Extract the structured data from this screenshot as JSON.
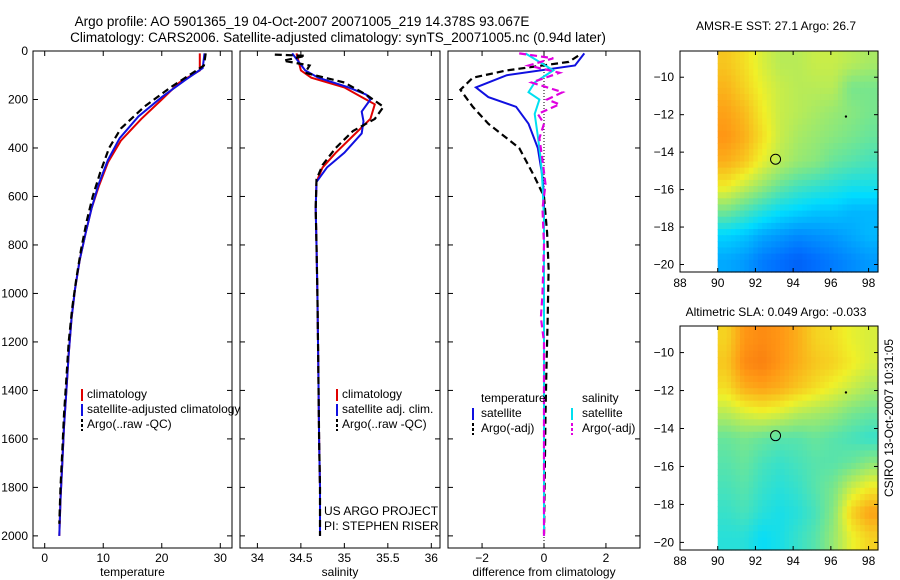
{
  "header": {
    "title_line1": "Argo profile: AO 5901365_19 04-Oct-2007 20071005_219 14.378S 93.067E",
    "title_line2": "Climatology: CARS2006. Satellite-adjusted climatology: synTS_20071005.nc (0.94d later)"
  },
  "side_label": "CSIRO 13-Oct-2007 10:31:05",
  "colors": {
    "climatology": "#e00000",
    "satellite": "#1010e0",
    "argo": "#000000",
    "sat_salinity": "#00e0f0",
    "argo_salinity": "#e000e0"
  },
  "chart_data": [
    {
      "type": "line",
      "id": "temperature",
      "xlabel": "temperature",
      "ylabel": "",
      "xlim": [
        -2,
        32
      ],
      "ylim": [
        0,
        2050
      ],
      "y_reversed": true,
      "xticks": [
        0,
        10,
        20,
        30
      ],
      "yticks": [
        0,
        200,
        400,
        600,
        800,
        1000,
        1200,
        1400,
        1600,
        1800,
        2000
      ],
      "legend": [
        "climatology",
        "satellite-adjusted climatology",
        "Argo(..raw -QC)"
      ],
      "legend_position": "lower-center",
      "series": [
        {
          "name": "climatology",
          "color": "#e00000",
          "style": "solid",
          "points": [
            [
              26.5,
              10
            ],
            [
              26.5,
              80
            ],
            [
              23,
              130
            ],
            [
              20,
              200
            ],
            [
              16.5,
              280
            ],
            [
              13,
              370
            ],
            [
              10.8,
              460
            ],
            [
              9.2,
              560
            ],
            [
              8,
              650
            ],
            [
              7,
              750
            ],
            [
              6,
              860
            ],
            [
              5.2,
              980
            ],
            [
              4.6,
              1100
            ],
            [
              4.1,
              1250
            ],
            [
              3.7,
              1400
            ],
            [
              3.3,
              1550
            ],
            [
              3,
              1700
            ],
            [
              2.7,
              1850
            ],
            [
              2.5,
              2000
            ]
          ]
        },
        {
          "name": "satellite-adjusted climatology",
          "color": "#1010e0",
          "style": "solid",
          "points": [
            [
              27.3,
              10
            ],
            [
              27,
              70
            ],
            [
              24,
              120
            ],
            [
              20,
              190
            ],
            [
              16,
              270
            ],
            [
              12.8,
              360
            ],
            [
              10.8,
              450
            ],
            [
              9.2,
              550
            ],
            [
              8,
              650
            ],
            [
              7,
              750
            ],
            [
              6,
              860
            ],
            [
              5.2,
              980
            ],
            [
              4.6,
              1100
            ],
            [
              4.1,
              1250
            ],
            [
              3.7,
              1400
            ],
            [
              3.3,
              1550
            ],
            [
              3,
              1700
            ],
            [
              2.7,
              1850
            ],
            [
              2.5,
              2000
            ]
          ]
        },
        {
          "name": "Argo(..raw -QC)",
          "color": "#000000",
          "style": "dashed",
          "points": [
            [
              27.5,
              10
            ],
            [
              27.2,
              60
            ],
            [
              25,
              95
            ],
            [
              21.5,
              150
            ],
            [
              17,
              230
            ],
            [
              13,
              320
            ],
            [
              11,
              400
            ],
            [
              9.5,
              500
            ],
            [
              8.2,
              600
            ],
            [
              7.2,
              700
            ],
            [
              6.2,
              820
            ],
            [
              5.4,
              940
            ],
            [
              4.7,
              1060
            ],
            [
              4.1,
              1200
            ],
            [
              3.7,
              1350
            ],
            [
              3.3,
              1500
            ],
            [
              3,
              1650
            ],
            [
              2.7,
              1800
            ],
            [
              2.5,
              1950
            ]
          ]
        }
      ]
    },
    {
      "type": "line",
      "id": "salinity",
      "xlabel": "salinity",
      "ylabel": "",
      "xlim": [
        33.8,
        36.1
      ],
      "ylim": [
        0,
        2050
      ],
      "y_reversed": true,
      "xticks": [
        34,
        34.5,
        35,
        35.5,
        36
      ],
      "yticks": [
        0,
        200,
        400,
        600,
        800,
        1000,
        1200,
        1400,
        1600,
        1800,
        2000
      ],
      "legend": [
        "climatology",
        "satellite adj. clim.",
        "Argo(..raw -QC)"
      ],
      "legend_position": "lower-right",
      "annotation": [
        "US ARGO PROJECT",
        "PI: STEPHEN RISER"
      ],
      "series": [
        {
          "name": "climatology",
          "color": "#e00000",
          "style": "solid",
          "points": [
            [
              34.45,
              10
            ],
            [
              34.5,
              80
            ],
            [
              34.62,
              110
            ],
            [
              35,
              150
            ],
            [
              35.2,
              190
            ],
            [
              35.35,
              220
            ],
            [
              35.3,
              280
            ],
            [
              35.1,
              350
            ],
            [
              34.9,
              420
            ],
            [
              34.75,
              480
            ],
            [
              34.68,
              540
            ],
            [
              34.67,
              650
            ],
            [
              34.68,
              800
            ],
            [
              34.69,
              1000
            ],
            [
              34.7,
              1300
            ],
            [
              34.71,
              1600
            ],
            [
              34.72,
              1800
            ],
            [
              34.72,
              2000
            ]
          ]
        },
        {
          "name": "satellite adj. clim.",
          "color": "#1010e0",
          "style": "solid",
          "points": [
            [
              34.4,
              10
            ],
            [
              34.55,
              80
            ],
            [
              34.7,
              110
            ],
            [
              35.05,
              150
            ],
            [
              35.25,
              180
            ],
            [
              35.3,
              200
            ],
            [
              35.2,
              250
            ],
            [
              35.22,
              290
            ],
            [
              35.2,
              340
            ],
            [
              35,
              420
            ],
            [
              34.8,
              480
            ],
            [
              34.68,
              540
            ],
            [
              34.67,
              650
            ],
            [
              34.68,
              800
            ],
            [
              34.69,
              1000
            ],
            [
              34.7,
              1300
            ],
            [
              34.71,
              1600
            ],
            [
              34.72,
              1800
            ],
            [
              34.72,
              2000
            ]
          ]
        },
        {
          "name": "Argo(..raw -QC)",
          "color": "#000000",
          "style": "dashed",
          "points": [
            [
              34.2,
              15
            ],
            [
              34.55,
              20
            ],
            [
              34.3,
              40
            ],
            [
              34.6,
              60
            ],
            [
              34.55,
              90
            ],
            [
              35,
              130
            ],
            [
              35.25,
              180
            ],
            [
              35.45,
              230
            ],
            [
              35.35,
              280
            ],
            [
              35.1,
              330
            ],
            [
              34.9,
              400
            ],
            [
              34.75,
              470
            ],
            [
              34.68,
              530
            ],
            [
              34.67,
              650
            ],
            [
              34.68,
              800
            ],
            [
              34.69,
              1000
            ],
            [
              34.7,
              1300
            ],
            [
              34.71,
              1600
            ],
            [
              34.72,
              1800
            ],
            [
              34.72,
              2000
            ]
          ]
        }
      ]
    },
    {
      "type": "line",
      "id": "difference",
      "xlabel": "difference from climatology",
      "ylabel": "",
      "xlim": [
        -3.1,
        3.1
      ],
      "ylim": [
        0,
        2050
      ],
      "y_reversed": true,
      "xticks": [
        -2,
        0,
        2
      ],
      "yticks": [
        0,
        200,
        400,
        600,
        800,
        1000,
        1200,
        1400,
        1600,
        1800,
        2000
      ],
      "legend_columns": [
        {
          "heading": "temperature",
          "items": [
            "satellite",
            "Argo(-adj)"
          ]
        },
        {
          "heading": "salinity",
          "items": [
            "satellite",
            "Argo(-adj)"
          ]
        }
      ],
      "legend_position": "lower",
      "series": [
        {
          "name": "temperature satellite",
          "color": "#1010e0",
          "style": "solid",
          "points": [
            [
              1.3,
              10
            ],
            [
              1,
              60
            ],
            [
              -1.2,
              100
            ],
            [
              -2.2,
              150
            ],
            [
              -1.8,
              190
            ],
            [
              -0.9,
              230
            ],
            [
              -0.5,
              300
            ],
            [
              -0.2,
              400
            ],
            [
              -0.05,
              520
            ],
            [
              0,
              600
            ],
            [
              0,
              2000
            ]
          ]
        },
        {
          "name": "temperature Argo(-adj)",
          "color": "#000000",
          "style": "dashed",
          "points": [
            [
              1.1,
              20
            ],
            [
              0.8,
              45
            ],
            [
              -1.2,
              80
            ],
            [
              -2.3,
              110
            ],
            [
              -2.7,
              160
            ],
            [
              -2.3,
              230
            ],
            [
              -1.8,
              300
            ],
            [
              -0.8,
              400
            ],
            [
              -0.3,
              520
            ],
            [
              0,
              600
            ],
            [
              0.1,
              750
            ],
            [
              0.15,
              900
            ],
            [
              0.12,
              1100
            ],
            [
              0.08,
              1300
            ],
            [
              0.05,
              1500
            ],
            [
              0.02,
              1800
            ],
            [
              0,
              2000
            ]
          ]
        },
        {
          "name": "salinity satellite",
          "color": "#00e0f0",
          "style": "solid",
          "points": [
            [
              -0.6,
              10
            ],
            [
              0.3,
              80
            ],
            [
              -0.3,
              130
            ],
            [
              -0.5,
              170
            ],
            [
              -0.15,
              200
            ],
            [
              -0.3,
              260
            ],
            [
              -0.2,
              350
            ],
            [
              -0.1,
              450
            ],
            [
              -0.05,
              550
            ],
            [
              0,
              700
            ],
            [
              0,
              2000
            ]
          ]
        },
        {
          "name": "salinity Argo(-adj)",
          "color": "#e000e0",
          "style": "dashed",
          "points": [
            [
              -0.8,
              10
            ],
            [
              0.3,
              30
            ],
            [
              -0.5,
              60
            ],
            [
              0.5,
              90
            ],
            [
              -0.4,
              130
            ],
            [
              0.6,
              170
            ],
            [
              0.1,
              200
            ],
            [
              0.5,
              220
            ],
            [
              -0.2,
              260
            ],
            [
              0,
              300
            ],
            [
              -0.15,
              360
            ],
            [
              -0.05,
              450
            ],
            [
              0.05,
              550
            ],
            [
              -0.05,
              650
            ],
            [
              0,
              800
            ],
            [
              -0.05,
              1000
            ],
            [
              -0.1,
              1100
            ],
            [
              0,
              1200
            ],
            [
              0,
              2000
            ]
          ]
        }
      ]
    },
    {
      "type": "heatmap",
      "id": "sst_map",
      "title": "AMSR-E SST: 27.1  Argo: 26.7",
      "xlim": [
        88,
        98.5
      ],
      "ylim": [
        -20.4,
        -8.6
      ],
      "xticks": [
        88,
        90,
        92,
        94,
        96,
        98
      ],
      "yticks": [
        -10,
        -12,
        -14,
        -16,
        -18,
        -20
      ],
      "data_lon_range": [
        90,
        98.5
      ],
      "argo_position": {
        "lon": 93.067,
        "lat": -14.378
      },
      "marker_point": {
        "lon": 96.8,
        "lat": -12.1
      },
      "field": [
        [
          0.72,
          0.68,
          0.62,
          0.58,
          0.58,
          0.6,
          0.6,
          0.58,
          0.56
        ],
        [
          0.75,
          0.7,
          0.64,
          0.6,
          0.58,
          0.58,
          0.58,
          0.5,
          0.5
        ],
        [
          0.78,
          0.74,
          0.66,
          0.6,
          0.58,
          0.56,
          0.54,
          0.52,
          0.5
        ],
        [
          0.8,
          0.76,
          0.68,
          0.6,
          0.56,
          0.54,
          0.52,
          0.5,
          0.48
        ],
        [
          0.76,
          0.72,
          0.64,
          0.58,
          0.54,
          0.52,
          0.48,
          0.46,
          0.44
        ],
        [
          0.66,
          0.6,
          0.54,
          0.48,
          0.44,
          0.42,
          0.4,
          0.38,
          0.38
        ],
        [
          0.5,
          0.45,
          0.4,
          0.36,
          0.34,
          0.32,
          0.32,
          0.3,
          0.3
        ],
        [
          0.34,
          0.32,
          0.28,
          0.26,
          0.24,
          0.25,
          0.26,
          0.28,
          0.3
        ],
        [
          0.28,
          0.26,
          0.22,
          0.2,
          0.18,
          0.2,
          0.22,
          0.24,
          0.26
        ]
      ]
    },
    {
      "type": "heatmap",
      "id": "sla_map",
      "title": "Altimetric SLA: 0.049  Argo: -0.033",
      "xlim": [
        88,
        98.5
      ],
      "ylim": [
        -20.4,
        -8.6
      ],
      "xticks": [
        88,
        90,
        92,
        94,
        96,
        98
      ],
      "yticks": [
        -10,
        -12,
        -14,
        -16,
        -18,
        -20
      ],
      "data_lon_range": [
        90,
        98.5
      ],
      "argo_position": {
        "lon": 93.067,
        "lat": -14.378
      },
      "marker_point": {
        "lon": 96.8,
        "lat": -12.1
      },
      "field": [
        [
          0.7,
          0.8,
          0.82,
          0.8,
          0.76,
          0.7,
          0.68,
          0.64,
          0.62
        ],
        [
          0.72,
          0.82,
          0.84,
          0.8,
          0.76,
          0.72,
          0.7,
          0.66,
          0.62
        ],
        [
          0.68,
          0.76,
          0.78,
          0.76,
          0.72,
          0.68,
          0.64,
          0.6,
          0.56
        ],
        [
          0.58,
          0.62,
          0.64,
          0.62,
          0.58,
          0.56,
          0.54,
          0.5,
          0.48
        ],
        [
          0.48,
          0.5,
          0.48,
          0.46,
          0.46,
          0.48,
          0.46,
          0.44,
          0.42
        ],
        [
          0.46,
          0.48,
          0.44,
          0.42,
          0.44,
          0.46,
          0.46,
          0.48,
          0.52
        ],
        [
          0.44,
          0.46,
          0.42,
          0.4,
          0.42,
          0.46,
          0.5,
          0.6,
          0.66
        ],
        [
          0.42,
          0.44,
          0.4,
          0.38,
          0.4,
          0.44,
          0.52,
          0.7,
          0.78
        ],
        [
          0.4,
          0.4,
          0.36,
          0.38,
          0.42,
          0.46,
          0.54,
          0.64,
          0.7
        ]
      ]
    }
  ]
}
